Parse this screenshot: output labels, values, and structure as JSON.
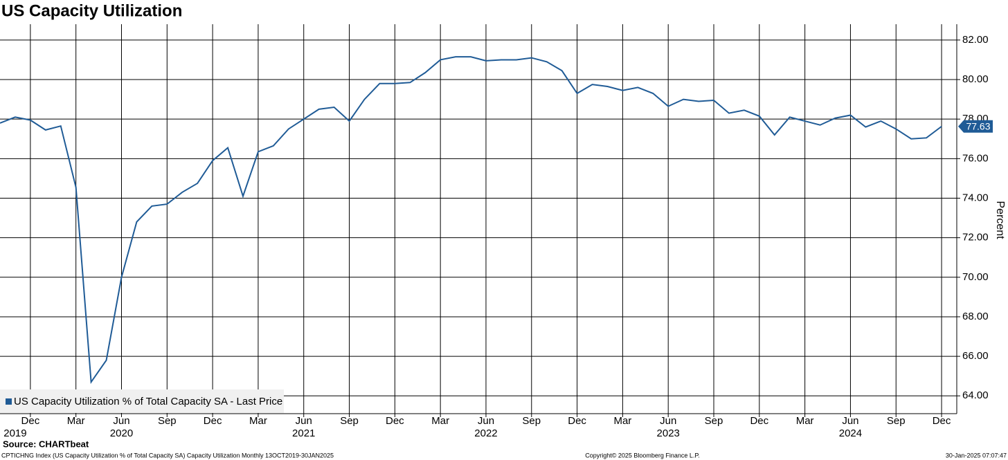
{
  "chart_data": {
    "type": "line",
    "title": "US Capacity Utilization",
    "y_axis_label": "Percent",
    "source": "Source: CHARTbeat",
    "footer_left": "CPTICHNG Index (US Capacity Utilization % of Total Capacity SA) Capacity Utilization  Monthly 13OCT2019-30JAN2025",
    "footer_center": "Copyright© 2025 Bloomberg Finance L.P.",
    "footer_right": "30-Jan-2025 07:07:47",
    "legend": "lower left",
    "grid": true,
    "x": [
      "2019-10",
      "2019-11",
      "2019-12",
      "2020-01",
      "2020-02",
      "2020-03",
      "2020-04",
      "2020-05",
      "2020-06",
      "2020-07",
      "2020-08",
      "2020-09",
      "2020-10",
      "2020-11",
      "2020-12",
      "2021-01",
      "2021-02",
      "2021-03",
      "2021-04",
      "2021-05",
      "2021-06",
      "2021-07",
      "2021-08",
      "2021-09",
      "2021-10",
      "2021-11",
      "2021-12",
      "2022-01",
      "2022-02",
      "2022-03",
      "2022-04",
      "2022-05",
      "2022-06",
      "2022-07",
      "2022-08",
      "2022-09",
      "2022-10",
      "2022-11",
      "2022-12",
      "2023-01",
      "2023-02",
      "2023-03",
      "2023-04",
      "2023-05",
      "2023-06",
      "2023-07",
      "2023-08",
      "2023-09",
      "2023-10",
      "2023-11",
      "2023-12",
      "2024-01",
      "2024-02",
      "2024-03",
      "2024-04",
      "2024-05",
      "2024-06",
      "2024-07",
      "2024-08",
      "2024-09",
      "2024-10",
      "2024-11",
      "2024-12"
    ],
    "series": [
      {
        "name": "US Capacity Utilization % of Total Capacity SA - Last Price",
        "color": "#1f5b96",
        "values": [
          77.8,
          78.1,
          77.95,
          77.45,
          77.65,
          74.55,
          64.7,
          65.8,
          70.0,
          72.8,
          73.6,
          73.7,
          74.3,
          74.75,
          75.9,
          76.55,
          74.1,
          76.35,
          76.65,
          77.5,
          78.0,
          78.5,
          78.6,
          77.9,
          79.0,
          79.8,
          79.8,
          79.85,
          80.35,
          81.0,
          81.15,
          81.15,
          80.95,
          81.0,
          81.0,
          81.1,
          80.9,
          80.45,
          79.3,
          79.75,
          79.65,
          79.45,
          79.6,
          79.3,
          78.65,
          79.0,
          78.9,
          78.95,
          78.3,
          78.45,
          78.15,
          77.2,
          78.1,
          77.9,
          77.7,
          78.05,
          78.2,
          77.6,
          77.9,
          77.5,
          77.0,
          77.05,
          77.63
        ]
      }
    ],
    "xlim": [
      "2019-10",
      "2025-01"
    ],
    "xticks": [
      {
        "value": "2019-12",
        "label": "Dec"
      },
      {
        "value": "2020-03",
        "label": "Mar"
      },
      {
        "value": "2020-06",
        "label": "Jun"
      },
      {
        "value": "2020-09",
        "label": "Sep"
      },
      {
        "value": "2020-12",
        "label": "Dec"
      },
      {
        "value": "2021-03",
        "label": "Mar"
      },
      {
        "value": "2021-06",
        "label": "Jun"
      },
      {
        "value": "2021-09",
        "label": "Sep"
      },
      {
        "value": "2021-12",
        "label": "Dec"
      },
      {
        "value": "2022-03",
        "label": "Mar"
      },
      {
        "value": "2022-06",
        "label": "Jun"
      },
      {
        "value": "2022-09",
        "label": "Sep"
      },
      {
        "value": "2022-12",
        "label": "Dec"
      },
      {
        "value": "2023-03",
        "label": "Mar"
      },
      {
        "value": "2023-06",
        "label": "Jun"
      },
      {
        "value": "2023-09",
        "label": "Sep"
      },
      {
        "value": "2023-12",
        "label": "Dec"
      },
      {
        "value": "2024-03",
        "label": "Mar"
      },
      {
        "value": "2024-06",
        "label": "Jun"
      },
      {
        "value": "2024-09",
        "label": "Sep"
      },
      {
        "value": "2024-12",
        "label": "Dec"
      }
    ],
    "year_labels": [
      {
        "value": "2019-11",
        "label": "2019"
      },
      {
        "value": "2020-06",
        "label": "2020"
      },
      {
        "value": "2021-06",
        "label": "2021"
      },
      {
        "value": "2022-06",
        "label": "2022"
      },
      {
        "value": "2023-06",
        "label": "2023"
      },
      {
        "value": "2024-06",
        "label": "2024"
      }
    ],
    "ylim": [
      63.1,
      82.8
    ],
    "yticks": [
      {
        "value": 64,
        "label": "64.00"
      },
      {
        "value": 66,
        "label": "66.00"
      },
      {
        "value": 68,
        "label": "68.00"
      },
      {
        "value": 70,
        "label": "70.00"
      },
      {
        "value": 72,
        "label": "72.00"
      },
      {
        "value": 74,
        "label": "74.00"
      },
      {
        "value": 76,
        "label": "76.00"
      },
      {
        "value": 78,
        "label": "78.00"
      },
      {
        "value": 80,
        "label": "80.00"
      },
      {
        "value": 82,
        "label": "82.00"
      }
    ]
  }
}
